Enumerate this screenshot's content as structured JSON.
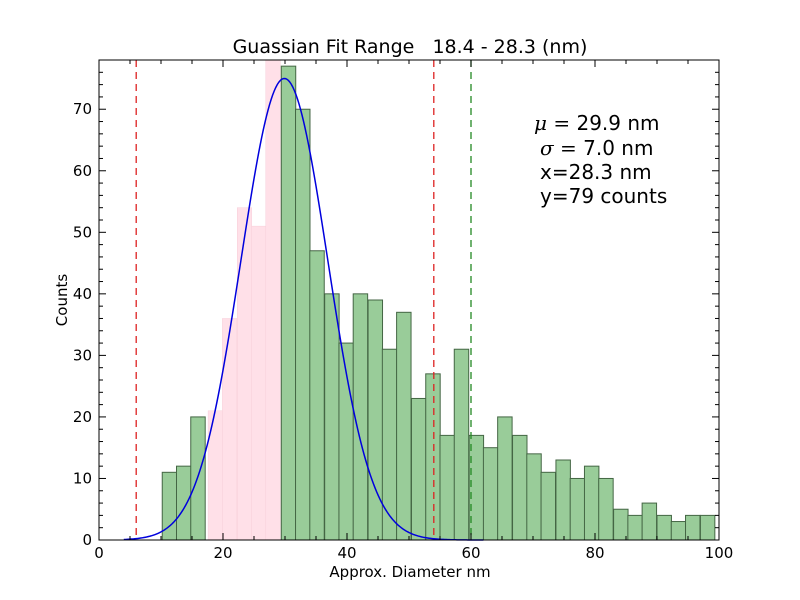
{
  "chart_data": {
    "type": "bar",
    "title": "Guassian Fit Range   18.4 - 28.3 (nm)",
    "xlabel": "Approx. Diameter nm",
    "ylabel": "Counts",
    "xlim": [
      0,
      100
    ],
    "ylim": [
      0,
      78
    ],
    "xticks": [
      0,
      20,
      40,
      60,
      80,
      100
    ],
    "yticks": [
      0,
      10,
      20,
      30,
      40,
      50,
      60,
      70
    ],
    "bin_width": 2.33,
    "bars_green": {
      "color": "#99cc99",
      "edge": "#446644",
      "x_start": [
        10.2,
        12.5,
        14.8,
        29.4,
        31.7,
        34.0,
        36.4,
        38.7,
        41.0,
        43.4,
        45.7,
        48.0,
        50.4,
        52.7,
        55.0,
        57.3,
        59.7,
        62.0,
        64.3,
        66.7,
        69.0,
        71.3,
        73.7,
        76.0,
        78.3,
        80.6,
        83.0,
        85.3,
        87.6,
        90.0,
        92.3,
        94.6,
        97.0
      ],
      "values": [
        11,
        12,
        20,
        77,
        70,
        47,
        40,
        32,
        40,
        39,
        31,
        37,
        23,
        27,
        17,
        31,
        17,
        15,
        20,
        17,
        14,
        11,
        13,
        10,
        12,
        10,
        5,
        4,
        6,
        4,
        3,
        4,
        4
      ]
    },
    "bars_pink": {
      "color": "#ffe0e8",
      "x_start": [
        17.6,
        19.9,
        22.3,
        24.6,
        26.9
      ],
      "values": [
        21,
        36,
        54,
        51,
        79
      ]
    },
    "gaussian_fit": {
      "color": "#0000dd",
      "mu": 29.9,
      "sigma": 7.0,
      "peak": 75
    },
    "vlines": [
      {
        "x": 6,
        "color": "#dd2222",
        "style": "dashed"
      },
      {
        "x": 54,
        "color": "#dd2222",
        "style": "dashed"
      },
      {
        "x": 60,
        "color": "#228822",
        "style": "dashed"
      }
    ],
    "annotations": [
      {
        "math": "μ =",
        "text": " 29.9 nm"
      },
      {
        "math": "σ =",
        "text": " 7.0 nm"
      },
      {
        "math": "",
        "text": "x=28.3 nm"
      },
      {
        "math": "",
        "text": "y=79 counts"
      }
    ],
    "grid": false
  }
}
